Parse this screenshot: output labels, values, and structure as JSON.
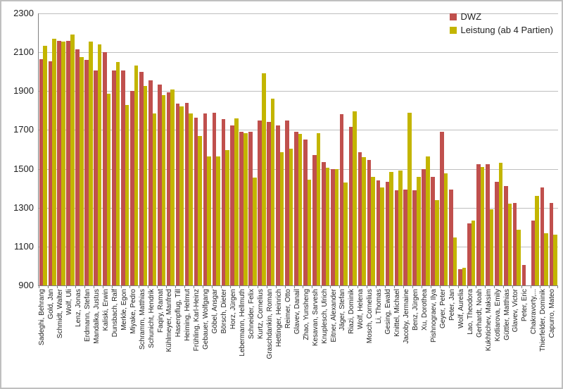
{
  "colors": {
    "dwz": "#C0504D",
    "leistung": "#C3B500",
    "gridline": "#BFBFBF",
    "axis": "#808080"
  },
  "legend": {
    "dwz_label": "DWZ",
    "leistung_label": "Leistung (ab 4 Partien)"
  },
  "chart_data": {
    "type": "bar",
    "title": "",
    "xlabel": "",
    "ylabel": "",
    "ylim": [
      900,
      2300
    ],
    "yticks": [
      900,
      1100,
      1300,
      1500,
      1700,
      1900,
      2100,
      2300
    ],
    "grid": true,
    "legend_position": "top-right",
    "categories": [
      "Sadeghi, Behrang",
      "Gold, Jan",
      "Schmidt, Walter",
      "Wolf, Uli",
      "Lenz, Jonas",
      "Erdmann, Stefan",
      "Mandalka, Justus",
      "Kaliski, Erwin",
      "Dunsbach, Ralf",
      "Merkle, Egon",
      "Miyake, Pedro",
      "Schramm, Matthias",
      "Schunicht, Hendrik",
      "Faqiry, Ramat",
      "Kühlmeyer, Manfred",
      "Hasenpflug, Till",
      "Heiming, Helmut",
      "Frühling, Karl-Heinz",
      "Gebauer, Wolfgang",
      "Göbel, Ansgar",
      "Börsch, Dieter",
      "Horz, Jürgen",
      "Lebermann, Hellmuth",
      "Schneider, Felix",
      "Kurtz, Cornelius",
      "Graschdankin, Roman",
      "Hettinger, Heinrich",
      "Reimer, Otto",
      "Glavev, Danail",
      "Zhao, Yunsheng",
      "Kesavan, Sarvesh",
      "Knuplesch, Ulrich",
      "Eitner, Alexander",
      "Jäger, Stefan",
      "Riazi, Dominik",
      "Wolf, Helena",
      "Mosch, Cornelius",
      "Li, Thomas",
      "Gesing, Ewald",
      "Knittel, Michael",
      "Jacoby, Jermaine",
      "Benz, Jürgen",
      "Xu, Dorothea",
      "Pishnograev, Ilya",
      "Geyer, Peter",
      "Peter, Jan",
      "Wolf, Aurelia",
      "Lao, Theodora",
      "Gerhardt, Noah",
      "Kukhtichev, Maksim",
      "Kotliarova, Emily",
      "Güttler, Matthias",
      "Glavev, Victor",
      "Peter, Eric",
      "Chakravorty,...",
      "Thierfelder, Dominik",
      "Capurro, Mateo"
    ],
    "series": [
      {
        "name": "DWZ",
        "color_key": "dwz",
        "values": [
          2065,
          2055,
          2160,
          2160,
          2115,
          2060,
          2005,
          2100,
          2005,
          2005,
          1900,
          2000,
          1955,
          1935,
          1895,
          1835,
          1840,
          1765,
          1785,
          1790,
          1755,
          1725,
          1690,
          1690,
          1750,
          1740,
          1725,
          1750,
          1690,
          1650,
          1570,
          1535,
          1500,
          1780,
          1715,
          1585,
          1545,
          1440,
          1435,
          1390,
          1395,
          1390,
          1500,
          1460,
          1690,
          1395,
          985,
          1220,
          1525,
          1525,
          1435,
          1410,
          1325,
          1005,
          1235,
          1405,
          1325
        ]
      },
      {
        "name": "Leistung (ab 4 Partien)",
        "color_key": "leistung",
        "values": [
          2135,
          2170,
          2155,
          2190,
          2075,
          2155,
          2140,
          1885,
          2050,
          1830,
          2030,
          1925,
          1785,
          1880,
          1910,
          1820,
          1785,
          1670,
          1565,
          1565,
          1595,
          1760,
          1685,
          1455,
          1990,
          1860,
          1585,
          1605,
          1680,
          1445,
          1685,
          1505,
          1500,
          1430,
          1795,
          1560,
          1460,
          1405,
          1485,
          1490,
          1790,
          1460,
          1565,
          1340,
          1475,
          1145,
          990,
          1235,
          1510,
          1290,
          1530,
          1320,
          1185,
          null,
          1360,
          1170,
          1160
        ]
      }
    ]
  }
}
